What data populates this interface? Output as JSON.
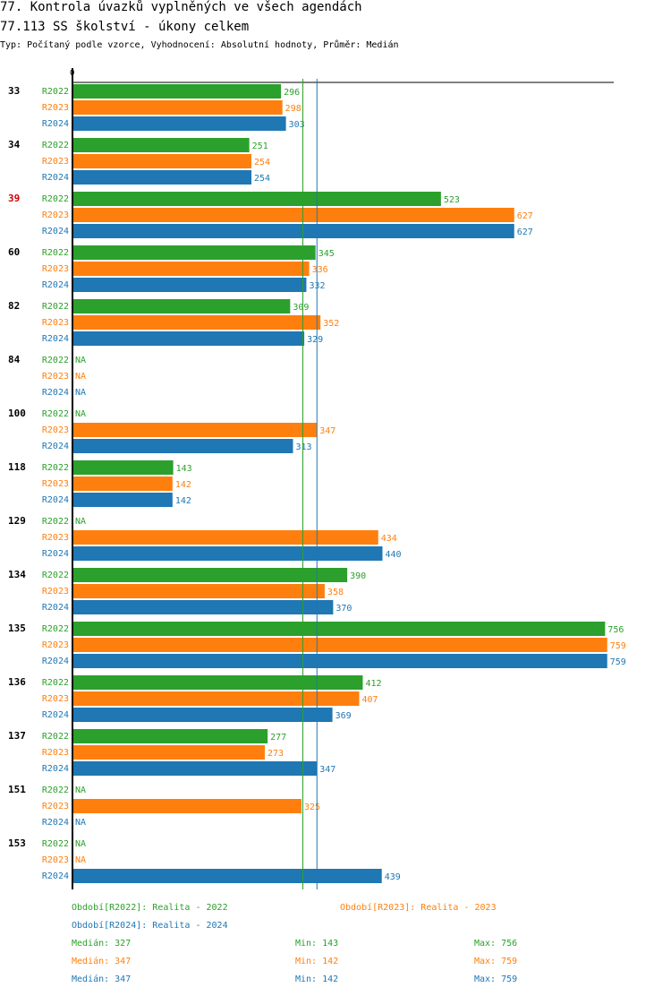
{
  "header": {
    "title": "77. Kontrola úvazků vyplněných ve všech agendách",
    "subtitle": "77.113 SS školství - úkony celkem",
    "type_line": "Typ: Počítaný podle vzorce, Vyhodnocení: Absolutní hodnoty, Průměr: Medián"
  },
  "chart_data": {
    "type": "bar",
    "orientation": "horizontal",
    "axis_zero_label": "0",
    "xlim": [
      0,
      760
    ],
    "na_label": "NA",
    "categories": [
      "33",
      "34",
      "39",
      "60",
      "82",
      "84",
      "100",
      "118",
      "129",
      "134",
      "135",
      "136",
      "137",
      "151",
      "153"
    ],
    "highlighted_categories": [
      "39"
    ],
    "series": [
      {
        "name": "R2022",
        "color": "#2ca02c",
        "values": [
          296,
          251,
          523,
          345,
          309,
          null,
          null,
          143,
          null,
          390,
          756,
          412,
          277,
          null,
          null
        ]
      },
      {
        "name": "R2023",
        "color": "#ff7f0e",
        "values": [
          298,
          254,
          627,
          336,
          352,
          null,
          347,
          142,
          434,
          358,
          759,
          407,
          273,
          325,
          null
        ]
      },
      {
        "name": "R2024",
        "color": "#1f77b4",
        "values": [
          303,
          254,
          627,
          332,
          329,
          null,
          313,
          142,
          440,
          370,
          759,
          369,
          347,
          null,
          439
        ]
      }
    ],
    "median_lines": [
      {
        "series": "R2022",
        "value": 327
      },
      {
        "series": "R2024",
        "value": 347
      }
    ]
  },
  "legend": {
    "periods": [
      {
        "text": "Období[R2022]: Realita - 2022",
        "color": "#2ca02c"
      },
      {
        "text": "Období[R2023]: Realita - 2023",
        "color": "#ff7f0e"
      },
      {
        "text": "Období[R2024]: Realita - 2024",
        "color": "#1f77b4"
      }
    ],
    "stats": [
      {
        "median": "Medián: 327",
        "min": "Min: 143",
        "max": "Max: 756",
        "color": "#2ca02c"
      },
      {
        "median": "Medián: 347",
        "min": "Min: 142",
        "max": "Max: 759",
        "color": "#ff7f0e"
      },
      {
        "median": "Medián: 347",
        "min": "Min: 142",
        "max": "Max: 759",
        "color": "#1f77b4"
      }
    ]
  }
}
